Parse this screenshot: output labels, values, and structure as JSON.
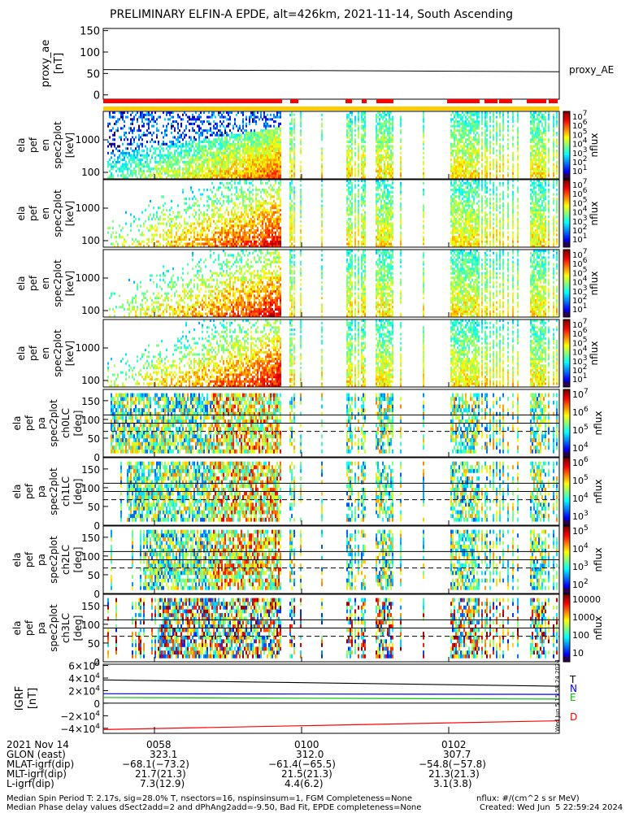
{
  "title": "PRELIMINARY ELFIN-A EPDE, alt=426km, 2021-11-14, South Ascending",
  "chart_data": [
    {
      "type": "line",
      "name": "proxy_ae_panel",
      "ylabel": [
        "proxy_ae",
        "[nT]"
      ],
      "ylim": [
        -10,
        155
      ],
      "yticks": [
        "150",
        "100",
        "50",
        "0"
      ],
      "ytick_values": [
        150,
        100,
        50,
        0
      ],
      "series": [
        {
          "name": "proxy_AE",
          "x": [
            0,
            1
          ],
          "y": [
            59,
            54
          ]
        }
      ]
    },
    {
      "type": "heatmap",
      "name": "energy_spectrograms",
      "ylabel": [
        "ela",
        "pef",
        "en",
        "spec2plot",
        "[keV]"
      ],
      "yticks": [
        "1000",
        "100"
      ],
      "colorbar_label": "nflux",
      "colorbar_ticks": [
        "10^7",
        "10^6",
        "10^5",
        "10^4",
        "10^3",
        "10^2",
        "10^1"
      ]
    },
    {
      "type": "heatmap",
      "name": "pitch_angle_spectrograms",
      "ylabel_rows": [
        [
          "ela",
          "pef",
          "pa",
          "spec2plot",
          "ch0LC",
          "[deg]"
        ],
        [
          "ela",
          "pef",
          "pa",
          "spec2plot",
          "ch1LC",
          "[deg]"
        ],
        [
          "ela",
          "pef",
          "pa",
          "spec2plot",
          "ch2LC",
          "[deg]"
        ],
        [
          "ela",
          "pef",
          "pa",
          "spec2plot",
          "ch3LC",
          "[deg]"
        ]
      ],
      "yticks": [
        "150",
        "100",
        "50",
        "0"
      ],
      "colorbar_label": "nflux",
      "colorbar_ticks_rows": [
        [
          "10^7",
          "10^6",
          "10^5",
          "10^4"
        ],
        [
          "10^6",
          "10^5",
          "10^4",
          "10^3"
        ],
        [
          "10^5",
          "10^4",
          "10^3",
          "10^2"
        ],
        [
          "10000",
          "1000",
          "100",
          "10"
        ]
      ]
    },
    {
      "type": "line",
      "name": "igrf_panel",
      "ylabel": [
        "IGRF",
        "[nT]"
      ],
      "yticks": [
        "6×10^4",
        "4×10^4",
        "2×10^4",
        "0",
        "−2×10^4",
        "−4×10^4"
      ],
      "ylim": [
        -48000,
        62000
      ],
      "series": [
        {
          "name": "T",
          "color": "#000000",
          "x": [
            0,
            1
          ],
          "y": [
            37000,
            27000
          ]
        },
        {
          "name": "N",
          "color": "#0000ff",
          "x": [
            0,
            1
          ],
          "y": [
            15000,
            14000
          ]
        },
        {
          "name": "E",
          "color": "#00c000",
          "x": [
            0,
            1
          ],
          "y": [
            9000,
            6500
          ]
        },
        {
          "name": "D",
          "color": "#ff0000",
          "x": [
            0,
            1
          ],
          "y": [
            -42000,
            -28000
          ]
        }
      ]
    }
  ],
  "stamp": "Wed Jun 5 15:58:24 2024",
  "xaxis": {
    "row_labels": [
      "2021 Nov 14",
      "GLON (east)",
      "MLAT-igrf(dip)",
      "MLT-igrf(dip)",
      "L-igrf(dip)"
    ],
    "columns": [
      {
        "time": "0058",
        "vals": [
          "323.1",
          "−68.1(−73.2)",
          "21.7(21.3)",
          "7.3(12.9)"
        ]
      },
      {
        "time": "0100",
        "vals": [
          "312.0",
          "−61.4(−65.5)",
          "21.5(21.3)",
          "4.4(6.2)"
        ]
      },
      {
        "time": "0102",
        "vals": [
          "307.7",
          "−54.8(−57.8)",
          "21.3(21.3)",
          "3.1(3.8)"
        ]
      }
    ]
  },
  "footer": {
    "line1": "Median Spin Period T: 2.17s, sig=28.0% T, nsectors=16, nspinsinsum=1, FGM Completeness=None",
    "line2": "Median Phase delay values dSect2add=2 and dPhAng2add=-9.50, Bad Fit, EPDE completeness=None",
    "units": "nflux: #/(cm^2 s sr MeV)",
    "created": "Created: Wed Jun  5 22:59:24 2024"
  }
}
